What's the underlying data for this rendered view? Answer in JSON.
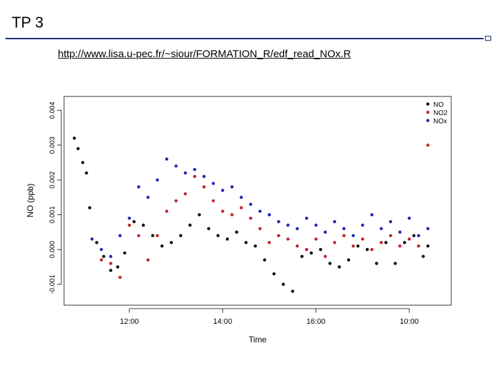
{
  "slide": {
    "title": "TP 3",
    "url": "http://www.lisa.u-pec.fr/~siour/FORMATION_R/edf_read_NOx.R"
  },
  "colors": {
    "title_rule": "#1e2a78",
    "NO": "#111111",
    "NO2": "#c0272d",
    "NOx": "#1f2bb5"
  },
  "chart_data": {
    "type": "scatter",
    "xlabel": "Time",
    "ylabel": "NO (ppb)",
    "x_ticks": [
      "12:00",
      "14:00",
      "16:00",
      "10:00"
    ],
    "y_ticks": [
      "-0.001",
      "0.000",
      "0.001",
      "0.002",
      "0.003",
      "0.004"
    ],
    "ylim": [
      -0.0016,
      0.0044
    ],
    "legend_position": "top-right",
    "grid": false,
    "series": [
      {
        "name": "NO",
        "color": "#111111",
        "points": [
          [
            10.82,
            0.0032
          ],
          [
            10.9,
            0.0029
          ],
          [
            11.0,
            0.0025
          ],
          [
            11.08,
            0.0022
          ],
          [
            11.15,
            0.0012
          ],
          [
            11.3,
            0.0002
          ],
          [
            11.45,
            -0.0002
          ],
          [
            11.6,
            -0.0006
          ],
          [
            11.75,
            -0.0005
          ],
          [
            11.9,
            -0.0001
          ],
          [
            12.1,
            0.0008
          ],
          [
            12.3,
            0.0007
          ],
          [
            12.5,
            0.0004
          ],
          [
            12.7,
            0.0001
          ],
          [
            12.9,
            0.0002
          ],
          [
            13.1,
            0.0004
          ],
          [
            13.3,
            0.0007
          ],
          [
            13.5,
            0.001
          ],
          [
            13.7,
            0.0006
          ],
          [
            13.9,
            0.0004
          ],
          [
            14.1,
            0.0003
          ],
          [
            14.3,
            0.0005
          ],
          [
            14.5,
            0.0002
          ],
          [
            14.7,
            0.0001
          ],
          [
            14.9,
            -0.0003
          ],
          [
            15.1,
            -0.0007
          ],
          [
            15.3,
            -0.001
          ],
          [
            15.5,
            -0.0012
          ],
          [
            15.7,
            -0.0002
          ],
          [
            15.9,
            -0.0001
          ],
          [
            16.1,
            0.0
          ],
          [
            16.3,
            -0.0004
          ],
          [
            16.5,
            -0.0005
          ],
          [
            16.7,
            -0.0003
          ],
          [
            16.9,
            0.0001
          ],
          [
            17.1,
            0.0
          ],
          [
            17.3,
            -0.0004
          ],
          [
            17.5,
            0.0002
          ],
          [
            17.7,
            -0.0004
          ],
          [
            17.9,
            0.0002
          ],
          [
            18.1,
            0.0004
          ],
          [
            18.3,
            -0.0002
          ],
          [
            18.4,
            0.0001
          ]
        ]
      },
      {
        "name": "NO2",
        "color": "#c0272d",
        "points": [
          [
            11.4,
            -0.0003
          ],
          [
            11.6,
            -0.0004
          ],
          [
            11.8,
            -0.0008
          ],
          [
            12.0,
            0.0007
          ],
          [
            12.2,
            0.0004
          ],
          [
            12.4,
            -0.0003
          ],
          [
            12.6,
            0.0004
          ],
          [
            12.8,
            0.0011
          ],
          [
            13.0,
            0.0014
          ],
          [
            13.2,
            0.0016
          ],
          [
            13.4,
            0.0021
          ],
          [
            13.6,
            0.0018
          ],
          [
            13.8,
            0.0014
          ],
          [
            14.0,
            0.0011
          ],
          [
            14.2,
            0.001
          ],
          [
            14.4,
            0.0012
          ],
          [
            14.6,
            0.0009
          ],
          [
            14.8,
            0.0006
          ],
          [
            15.0,
            0.0002
          ],
          [
            15.2,
            0.0004
          ],
          [
            15.4,
            0.0003
          ],
          [
            15.6,
            0.0001
          ],
          [
            15.8,
            0.0
          ],
          [
            16.0,
            0.0003
          ],
          [
            16.2,
            -0.0002
          ],
          [
            16.4,
            0.0002
          ],
          [
            16.6,
            0.0004
          ],
          [
            16.8,
            0.0001
          ],
          [
            17.0,
            0.0003
          ],
          [
            17.2,
            0.0
          ],
          [
            17.4,
            0.0002
          ],
          [
            17.6,
            0.0004
          ],
          [
            17.8,
            0.0001
          ],
          [
            18.0,
            0.0003
          ],
          [
            18.2,
            0.0001
          ],
          [
            18.4,
            0.003
          ]
        ]
      },
      {
        "name": "NOx",
        "color": "#1f2bb5",
        "points": [
          [
            11.2,
            0.0003
          ],
          [
            11.4,
            0.0
          ],
          [
            11.6,
            -0.0002
          ],
          [
            11.8,
            0.0004
          ],
          [
            12.0,
            0.0009
          ],
          [
            12.2,
            0.0018
          ],
          [
            12.4,
            0.0015
          ],
          [
            12.6,
            0.002
          ],
          [
            12.8,
            0.0026
          ],
          [
            13.0,
            0.0024
          ],
          [
            13.2,
            0.0022
          ],
          [
            13.4,
            0.0023
          ],
          [
            13.6,
            0.0021
          ],
          [
            13.8,
            0.0019
          ],
          [
            14.0,
            0.0017
          ],
          [
            14.2,
            0.0018
          ],
          [
            14.4,
            0.0015
          ],
          [
            14.6,
            0.0013
          ],
          [
            14.8,
            0.0011
          ],
          [
            15.0,
            0.001
          ],
          [
            15.2,
            0.0008
          ],
          [
            15.4,
            0.0007
          ],
          [
            15.6,
            0.0006
          ],
          [
            15.8,
            0.0009
          ],
          [
            16.0,
            0.0007
          ],
          [
            16.2,
            0.0005
          ],
          [
            16.4,
            0.0008
          ],
          [
            16.6,
            0.0006
          ],
          [
            16.8,
            0.0004
          ],
          [
            17.0,
            0.0007
          ],
          [
            17.2,
            0.001
          ],
          [
            17.4,
            0.0006
          ],
          [
            17.6,
            0.0008
          ],
          [
            17.8,
            0.0005
          ],
          [
            18.0,
            0.0009
          ],
          [
            18.2,
            0.0004
          ],
          [
            18.4,
            0.0006
          ]
        ]
      }
    ]
  }
}
